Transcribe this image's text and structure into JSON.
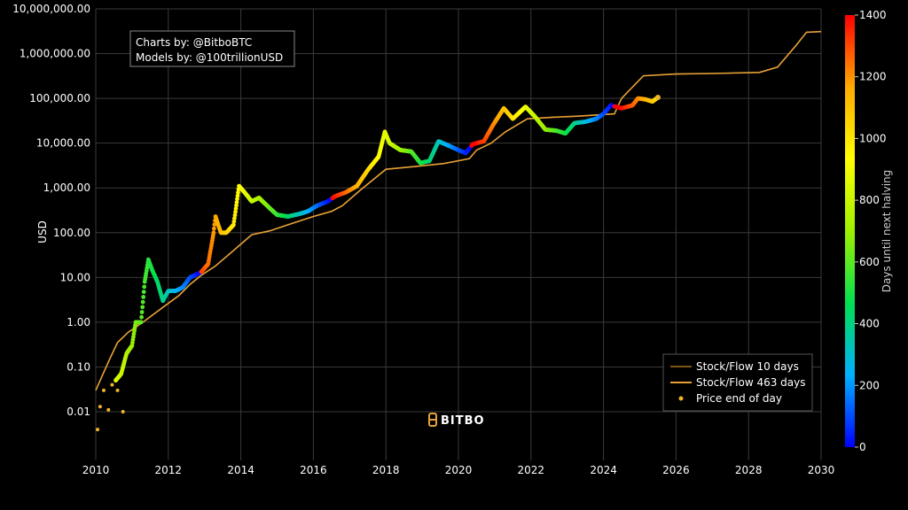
{
  "credits": {
    "line1": "Charts by: @BitboBTC",
    "line2": "Models by: @100trillionUSD"
  },
  "logo_text": "BITBO",
  "colors": {
    "background": "#000000",
    "grid": "#3a3a3a",
    "model_10d": "#a7731f",
    "model_463d": "#e6a136",
    "price_dot": "#f0b429"
  },
  "chart_data": {
    "type": "line",
    "title": "",
    "xlabel": "",
    "ylabel": "USD",
    "y_scale": "log",
    "xlim": [
      2010,
      2030
    ],
    "ylim": [
      0.003,
      10000000
    ],
    "x_ticks": [
      "2010",
      "2012",
      "2014",
      "2016",
      "2018",
      "2020",
      "2022",
      "2024",
      "2026",
      "2028",
      "2030"
    ],
    "y_ticks": [
      {
        "value": 0.01,
        "label": "0.01"
      },
      {
        "value": 0.1,
        "label": "0.10"
      },
      {
        "value": 1,
        "label": "1.00"
      },
      {
        "value": 10,
        "label": "10.00"
      },
      {
        "value": 100,
        "label": "100.00"
      },
      {
        "value": 1000,
        "label": "1,000.00"
      },
      {
        "value": 10000,
        "label": "10,000.00"
      },
      {
        "value": 100000,
        "label": "100,000.00"
      },
      {
        "value": 1000000,
        "label": "1,000,000.00"
      },
      {
        "value": 10000000,
        "label": "10,000,000.00"
      }
    ],
    "grid": true,
    "legend": {
      "position": "bottom-right",
      "entries": [
        {
          "name": "Stock/Flow 10 days",
          "type": "line",
          "color": "#a7731f"
        },
        {
          "name": "Stock/Flow 463 days",
          "type": "line",
          "color": "#e6a136"
        },
        {
          "name": "Price end of day",
          "type": "marker",
          "color": "#f0b429"
        }
      ]
    },
    "colorbar": {
      "title": "Days until next halving",
      "min": 0,
      "max": 1400,
      "ticks": [
        0,
        200,
        400,
        600,
        800,
        1000,
        1200,
        1400
      ],
      "colors": [
        "#0000ff",
        "#00b0ff",
        "#00e050",
        "#9ef000",
        "#ffff00",
        "#ffaa00",
        "#ff0000"
      ]
    },
    "series": [
      {
        "name": "Stock/Flow 10 days",
        "color": "#a7731f",
        "points": [
          [
            2010.0,
            0.03
          ],
          [
            2010.2,
            0.07
          ],
          [
            2010.4,
            0.16
          ],
          [
            2010.6,
            0.35
          ],
          [
            2010.9,
            0.6
          ],
          [
            2011.3,
            1.0
          ],
          [
            2011.8,
            2.0
          ],
          [
            2012.3,
            4.0
          ],
          [
            2012.6,
            7.0
          ],
          [
            2012.9,
            11.0
          ],
          [
            2013.3,
            18.0
          ],
          [
            2013.8,
            40.0
          ],
          [
            2014.3,
            90.0
          ],
          [
            2014.8,
            110.0
          ],
          [
            2015.4,
            160.0
          ],
          [
            2016.0,
            230.0
          ],
          [
            2016.5,
            300.0
          ],
          [
            2016.8,
            400.0
          ],
          [
            2017.3,
            900.0
          ],
          [
            2018.0,
            2600.0
          ],
          [
            2018.8,
            3000.0
          ],
          [
            2019.6,
            3500.0
          ],
          [
            2020.3,
            4500.0
          ],
          [
            2020.5,
            7000.0
          ],
          [
            2020.9,
            10000.0
          ],
          [
            2021.3,
            18000.0
          ],
          [
            2021.9,
            35000.0
          ],
          [
            2022.6,
            38000.0
          ],
          [
            2023.3,
            40000.0
          ],
          [
            2024.3,
            45000.0
          ],
          [
            2024.5,
            100000.0
          ],
          [
            2025.1,
            320000.0
          ],
          [
            2026.0,
            350000.0
          ],
          [
            2027.0,
            360000.0
          ],
          [
            2028.3,
            380000.0
          ],
          [
            2028.8,
            500000.0
          ],
          [
            2029.3,
            1500000.0
          ],
          [
            2029.6,
            3000000.0
          ],
          [
            2030.0,
            3100000.0
          ]
        ]
      },
      {
        "name": "Stock/Flow 463 days",
        "color": "#e6a136",
        "points": [
          [
            2010.0,
            0.03
          ],
          [
            2010.2,
            0.07
          ],
          [
            2010.4,
            0.16
          ],
          [
            2010.6,
            0.35
          ],
          [
            2010.9,
            0.6
          ],
          [
            2011.3,
            1.0
          ],
          [
            2011.8,
            2.0
          ],
          [
            2012.3,
            4.0
          ],
          [
            2012.6,
            7.0
          ],
          [
            2012.9,
            11.0
          ],
          [
            2013.3,
            18.0
          ],
          [
            2013.8,
            40.0
          ],
          [
            2014.3,
            90.0
          ],
          [
            2014.8,
            110.0
          ],
          [
            2015.4,
            160.0
          ],
          [
            2016.0,
            230.0
          ],
          [
            2016.5,
            300.0
          ],
          [
            2016.8,
            400.0
          ],
          [
            2017.3,
            900.0
          ],
          [
            2018.0,
            2600.0
          ],
          [
            2018.8,
            3000.0
          ],
          [
            2019.6,
            3500.0
          ],
          [
            2020.3,
            4500.0
          ],
          [
            2020.5,
            7000.0
          ],
          [
            2020.9,
            10000.0
          ],
          [
            2021.3,
            18000.0
          ],
          [
            2021.9,
            35000.0
          ],
          [
            2022.6,
            38000.0
          ],
          [
            2023.3,
            40000.0
          ],
          [
            2024.3,
            45000.0
          ],
          [
            2024.5,
            100000.0
          ],
          [
            2025.1,
            320000.0
          ],
          [
            2026.0,
            350000.0
          ],
          [
            2027.0,
            360000.0
          ],
          [
            2028.3,
            380000.0
          ],
          [
            2028.8,
            500000.0
          ],
          [
            2029.3,
            1500000.0
          ],
          [
            2029.6,
            3000000.0
          ],
          [
            2030.0,
            3100000.0
          ]
        ]
      },
      {
        "name": "Price end of day",
        "color": "#f0b429",
        "sparse_points": [
          [
            2010.05,
            0.004
          ],
          [
            2010.12,
            0.013
          ],
          [
            2010.22,
            0.03
          ],
          [
            2010.35,
            0.011
          ],
          [
            2010.45,
            0.04
          ],
          [
            2010.6,
            0.03
          ],
          [
            2010.75,
            0.01
          ]
        ],
        "points": [
          [
            2010.55,
            0.05
          ],
          [
            2010.7,
            0.07
          ],
          [
            2010.85,
            0.2
          ],
          [
            2011.0,
            0.3
          ],
          [
            2011.1,
            1.0
          ],
          [
            2011.25,
            1.0
          ],
          [
            2011.35,
            8.0
          ],
          [
            2011.45,
            25.0
          ],
          [
            2011.55,
            15.0
          ],
          [
            2011.7,
            8.0
          ],
          [
            2011.85,
            3.0
          ],
          [
            2012.0,
            5.0
          ],
          [
            2012.2,
            5.0
          ],
          [
            2012.4,
            6.0
          ],
          [
            2012.6,
            10.0
          ],
          [
            2012.9,
            13.0
          ],
          [
            2013.1,
            20.0
          ],
          [
            2013.25,
            100.0
          ],
          [
            2013.3,
            230.0
          ],
          [
            2013.45,
            100.0
          ],
          [
            2013.6,
            100.0
          ],
          [
            2013.8,
            150.0
          ],
          [
            2013.95,
            1100.0
          ],
          [
            2014.1,
            800.0
          ],
          [
            2014.3,
            500.0
          ],
          [
            2014.5,
            600.0
          ],
          [
            2014.8,
            350.0
          ],
          [
            2015.0,
            250.0
          ],
          [
            2015.3,
            230.0
          ],
          [
            2015.6,
            260.0
          ],
          [
            2015.85,
            300.0
          ],
          [
            2016.1,
            400.0
          ],
          [
            2016.4,
            500.0
          ],
          [
            2016.6,
            650.0
          ],
          [
            2016.9,
            800.0
          ],
          [
            2017.2,
            1100.0
          ],
          [
            2017.5,
            2500.0
          ],
          [
            2017.8,
            5000.0
          ],
          [
            2017.97,
            18000.0
          ],
          [
            2018.1,
            10000.0
          ],
          [
            2018.4,
            7000.0
          ],
          [
            2018.7,
            6500.0
          ],
          [
            2018.95,
            3600.0
          ],
          [
            2019.2,
            4000.0
          ],
          [
            2019.45,
            11000.0
          ],
          [
            2019.7,
            9000.0
          ],
          [
            2020.0,
            7000.0
          ],
          [
            2020.2,
            6000.0
          ],
          [
            2020.4,
            9500.0
          ],
          [
            2020.7,
            11000.0
          ],
          [
            2020.95,
            25000.0
          ],
          [
            2021.25,
            60000.0
          ],
          [
            2021.5,
            35000.0
          ],
          [
            2021.85,
            65000.0
          ],
          [
            2022.1,
            40000.0
          ],
          [
            2022.4,
            20000.0
          ],
          [
            2022.7,
            19000.0
          ],
          [
            2022.95,
            16500.0
          ],
          [
            2023.2,
            28000.0
          ],
          [
            2023.5,
            30000.0
          ],
          [
            2023.8,
            35000.0
          ],
          [
            2024.0,
            45000.0
          ],
          [
            2024.2,
            70000.0
          ],
          [
            2024.5,
            60000.0
          ],
          [
            2024.8,
            70000.0
          ],
          [
            2024.95,
            100000.0
          ],
          [
            2025.15,
            95000.0
          ],
          [
            2025.35,
            85000.0
          ],
          [
            2025.5,
            105000.0
          ]
        ]
      }
    ]
  }
}
